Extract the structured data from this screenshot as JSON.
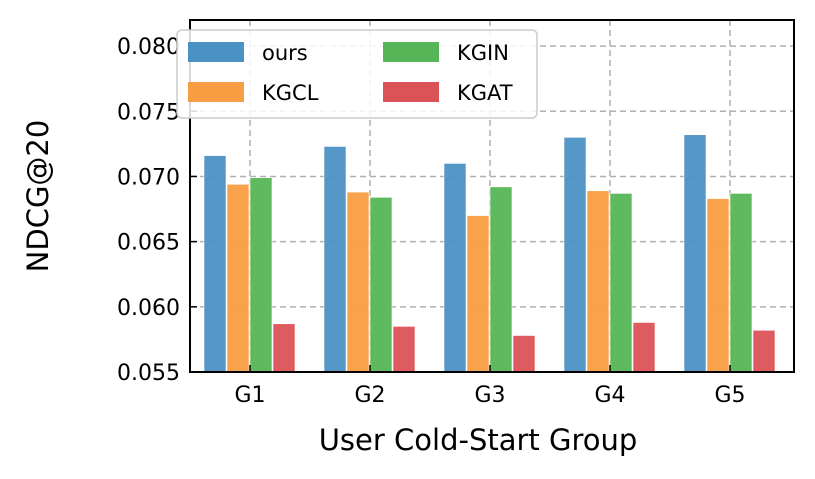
{
  "chart_data": {
    "type": "bar",
    "title": "",
    "xlabel": "User Cold-Start Group",
    "ylabel": "NDCG@20",
    "categories": [
      "G1",
      "G2",
      "G3",
      "G4",
      "G5"
    ],
    "ylim": [
      0.055,
      0.082
    ],
    "yticks": [
      "0.055",
      "0.060",
      "0.065",
      "0.070",
      "0.075",
      "0.080"
    ],
    "grid": true,
    "legend_position": "top-left",
    "series": [
      {
        "name": "ours",
        "color": "#4C91C3",
        "values": [
          0.0716,
          0.0723,
          0.071,
          0.073,
          0.0732
        ]
      },
      {
        "name": "KGCL",
        "color": "#F89E42",
        "values": [
          0.0694,
          0.0688,
          0.067,
          0.0689,
          0.0683
        ]
      },
      {
        "name": "KGIN",
        "color": "#56B556",
        "values": [
          0.0699,
          0.0684,
          0.0692,
          0.0687,
          0.0687
        ]
      },
      {
        "name": "KGAT",
        "color": "#DC5357",
        "values": [
          0.0587,
          0.0585,
          0.0578,
          0.0588,
          0.0582
        ]
      }
    ]
  }
}
